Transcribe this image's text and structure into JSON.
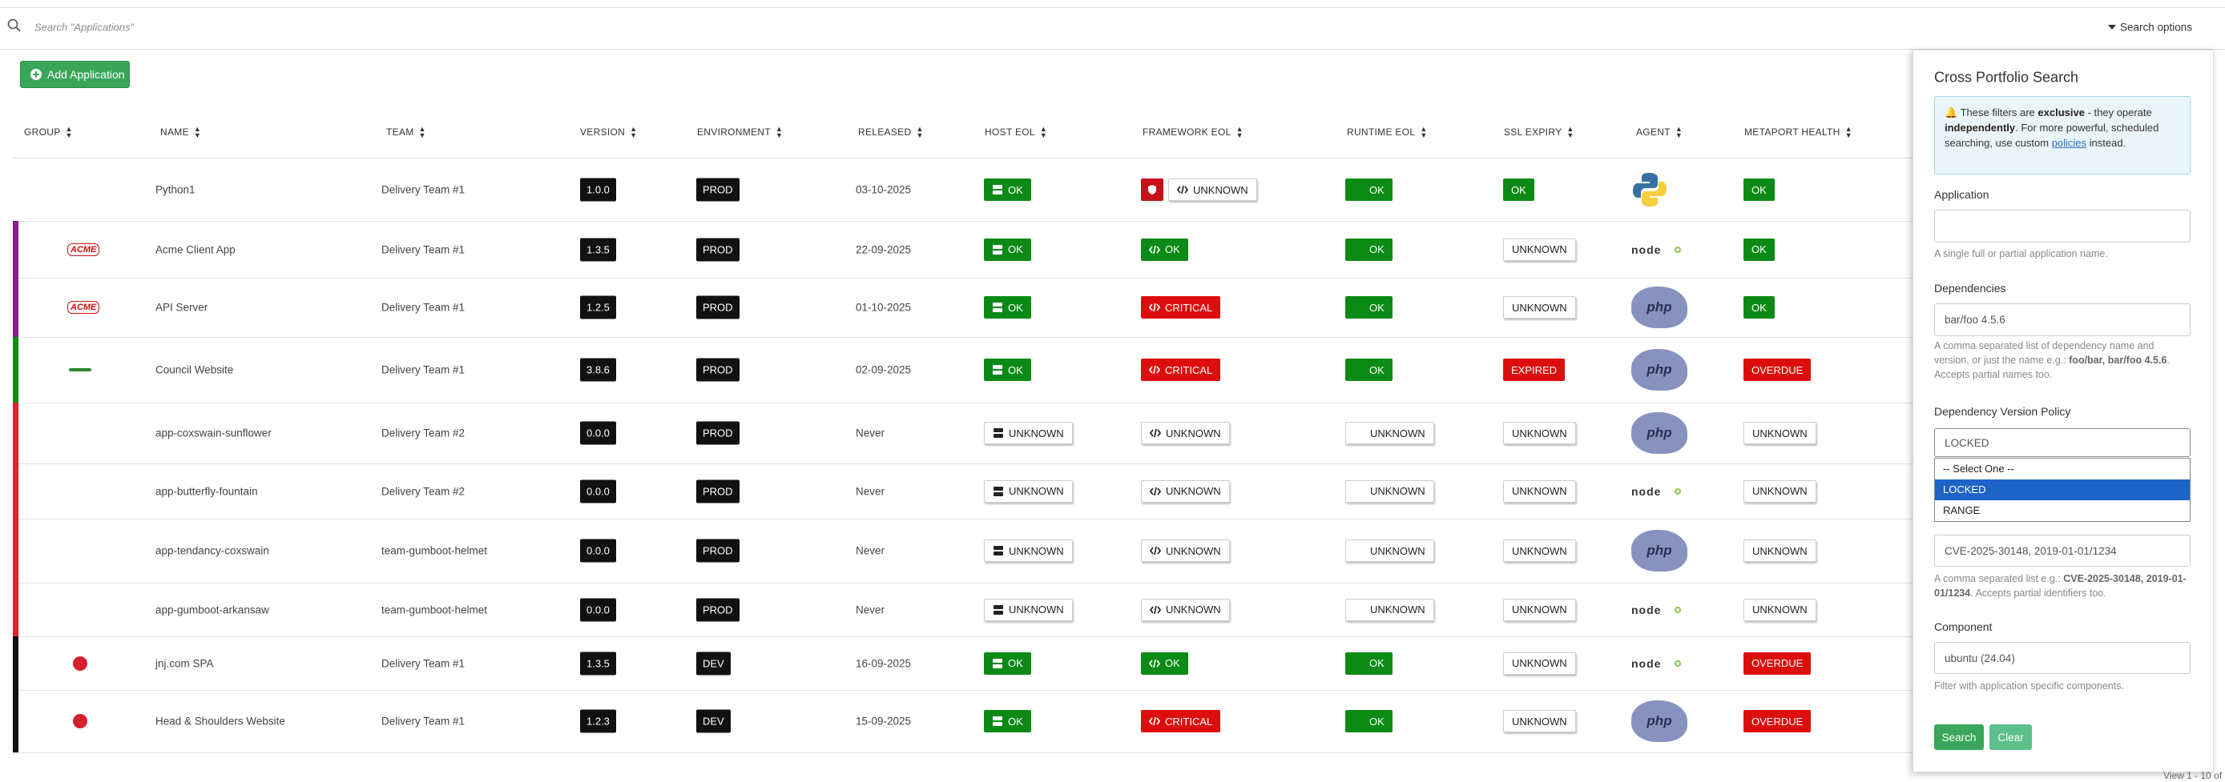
{
  "search": {
    "placeholder": "Search \"Applications\"",
    "options": "Search options"
  },
  "add_button": "Add Application",
  "table": {
    "headers": [
      "GROUP",
      "NAME",
      "TEAM",
      "VERSION",
      "ENVIRONMENT",
      "RELEASED",
      "HOST EOL",
      "FRAMEWORK EOL",
      "RUNTIME EOL",
      "SSL EXPIRY",
      "AGENT",
      "METAPORT HEALTH"
    ],
    "rows": [
      {
        "stripe": null,
        "group": null,
        "name": "Python1",
        "team": "Delivery Team #1",
        "version": "1.0.0",
        "environment": "PROD",
        "released": "03-10-2025",
        "host_eol": "OK",
        "framework_eol": "UNKNOWN",
        "runtime_eol": "OK",
        "ssl_expiry": "OK",
        "agent": null,
        "metaport_health": "OK"
      },
      {
        "stripe": "#8a1c8a",
        "group": "ACME",
        "name": "Acme Client App",
        "team": "Delivery Team #1",
        "version": "1.3.5",
        "environment": "PROD",
        "released": "22-09-2025",
        "host_eol": "OK",
        "framework_eol": "OK",
        "runtime_eol": "OK",
        "ssl_expiry": "UNKNOWN",
        "agent": "node",
        "metaport_health": "OK"
      },
      {
        "stripe": "#8a1c8a",
        "group": "ACME",
        "name": "API Server",
        "team": "Delivery Team #1",
        "version": "1.2.5",
        "environment": "PROD",
        "released": "01-10-2025",
        "host_eol": "OK",
        "framework_eol": "CRITICAL",
        "runtime_eol": "OK",
        "ssl_expiry": "UNKNOWN",
        "agent": "php",
        "metaport_health": "OK"
      },
      {
        "stripe": "#138a13",
        "group": null,
        "name": "Council Website",
        "team": "Delivery Team #1",
        "version": "3.8.6",
        "environment": "PROD",
        "released": "02-09-2025",
        "host_eol": "OK",
        "framework_eol": "CRITICAL",
        "runtime_eol": "OK",
        "ssl_expiry": "EXPIRED",
        "agent": "php",
        "metaport_health": "OVERDUE"
      },
      {
        "stripe": "#e0202a",
        "group": null,
        "name": "app-coxswain-sunflower",
        "team": "Delivery Team #2",
        "version": "0.0.0",
        "environment": "PROD",
        "released": "Never",
        "host_eol": "UNKNOWN",
        "framework_eol": "UNKNOWN",
        "runtime_eol": "UNKNOWN",
        "ssl_expiry": "UNKNOWN",
        "agent": "php",
        "metaport_health": "UNKNOWN"
      },
      {
        "stripe": "#e0202a",
        "group": null,
        "name": "app-butterfly-fountain",
        "team": "Delivery Team #2",
        "version": "0.0.0",
        "environment": "PROD",
        "released": "Never",
        "host_eol": "UNKNOWN",
        "framework_eol": "UNKNOWN",
        "runtime_eol": "UNKNOWN",
        "ssl_expiry": "UNKNOWN",
        "agent": "node",
        "metaport_health": "UNKNOWN"
      },
      {
        "stripe": "#e0202a",
        "group": null,
        "name": "app-tendancy-coxswain",
        "team": "team-gumboot-helmet",
        "version": "0.0.0",
        "environment": "PROD",
        "released": "Never",
        "host_eol": "UNKNOWN",
        "framework_eol": "UNKNOWN",
        "runtime_eol": "UNKNOWN",
        "ssl_expiry": "UNKNOWN",
        "agent": "php",
        "metaport_health": "UNKNOWN"
      },
      {
        "stripe": "#e0202a",
        "group": null,
        "name": "app-gumboot-arkansaw",
        "team": "team-gumboot-helmet",
        "version": "0.0.0",
        "environment": "PROD",
        "released": "Never",
        "host_eol": "UNKNOWN",
        "framework_eol": "UNKNOWN",
        "runtime_eol": "UNKNOWN",
        "ssl_expiry": "UNKNOWN",
        "agent": "node",
        "metaport_health": "UNKNOWN"
      },
      {
        "stripe": "#111111",
        "group": null,
        "name": "jnj.com SPA",
        "team": "Delivery Team #1",
        "version": "1.3.5",
        "environment": "DEV",
        "released": "16-09-2025",
        "host_eol": "OK",
        "framework_eol": "OK",
        "runtime_eol": "OK",
        "ssl_expiry": "UNKNOWN",
        "agent": "node",
        "metaport_health": "OVERDUE"
      },
      {
        "stripe": "#111111",
        "group": null,
        "name": "Head & Shoulders Website",
        "team": "Delivery Team #1",
        "version": "1.2.3",
        "environment": "DEV",
        "released": "15-09-2025",
        "host_eol": "OK",
        "framework_eol": "CRITICAL",
        "runtime_eol": "OK",
        "ssl_expiry": "UNKNOWN",
        "agent": "php",
        "metaport_health": "OVERDUE"
      }
    ]
  },
  "panel": {
    "title": "Cross Portfolio Search",
    "info": [
      "These filters are ",
      "exclusive",
      " - they operate ",
      "independently",
      ". For more powerful, scheduled searching, use custom ",
      "policies",
      " instead."
    ],
    "application": {
      "label": "Application",
      "help": "A single full or partial application name."
    },
    "dependencies": {
      "label": "Dependencies",
      "value": "bar/foo 4.5.6",
      "help": [
        "A comma separated list of dependency name and version, or just the name e.g.: ",
        "foo/bar, bar/foo 4.5.6",
        ". Accepts partial names too."
      ]
    },
    "policy": {
      "label": "Dependency Version Policy",
      "value": "LOCKED",
      "options": [
        "-- Select One --",
        "LOCKED",
        "RANGE"
      ]
    },
    "vulnerabilities": {
      "value": "CVE-2025-30148, 2019-01-01/1234",
      "help": [
        "A comma separated list e.g.: ",
        "CVE-2025-30148, 2019-01-01/1234",
        ". Accepts partial identifiers too."
      ]
    },
    "component": {
      "label": "Component",
      "value": "ubuntu (24.04)",
      "help": "Filter with application specific components."
    },
    "buttons": [
      "Search",
      "Clear"
    ]
  },
  "footer": "View 1 - 10 of"
}
